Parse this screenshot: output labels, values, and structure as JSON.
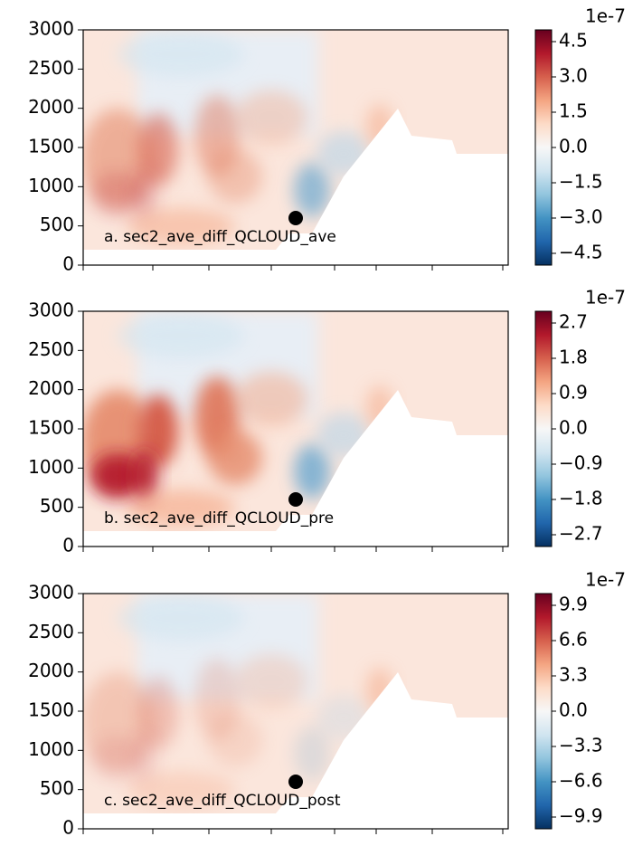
{
  "chart_data": [
    {
      "type": "contour",
      "title": "a. sec2_ave_diff_QCLOUD_ave",
      "ylim": [
        0,
        3000
      ],
      "yticks": [
        0,
        500,
        1000,
        1500,
        2000,
        2500,
        3000
      ],
      "marker": {
        "y": 600
      },
      "colorbar": {
        "offset_label": "1e-7",
        "lim": [
          -5.0,
          5.0
        ],
        "ticks": [
          {
            "value": -4.5,
            "label": "−4.5"
          },
          {
            "value": -3.0,
            "label": "−3.0"
          },
          {
            "value": -1.5,
            "label": "−1.5"
          },
          {
            "value": 0,
            "label": "0.0"
          },
          1.5,
          {
            "value": 3.0,
            "label": "3.0"
          },
          4.5
        ]
      }
    },
    {
      "type": "contour",
      "title": "b. sec2_ave_diff_QCLOUD_pre",
      "ylim": [
        0,
        3000
      ],
      "yticks": [
        0,
        500,
        1000,
        1500,
        2000,
        2500,
        3000
      ],
      "marker": {
        "y": 600
      },
      "colorbar": {
        "offset_label": "1e-7",
        "lim": [
          -3.0,
          3.0
        ],
        "ticks": [
          {
            "value": -2.7,
            "label": "−2.7"
          },
          {
            "value": -1.8,
            "label": "−1.8"
          },
          {
            "value": -0.9,
            "label": "−0.9"
          },
          {
            "value": 0,
            "label": "0.0"
          },
          0.9,
          1.8,
          2.7
        ]
      }
    },
    {
      "type": "contour",
      "title": "c. sec2_ave_diff_QCLOUD_post",
      "ylim": [
        0,
        3000
      ],
      "yticks": [
        0,
        500,
        1000,
        1500,
        2000,
        2500,
        3000
      ],
      "marker": {
        "y": 600
      },
      "colorbar": {
        "offset_label": "1e-7",
        "lim": [
          -11.0,
          11.0
        ],
        "ticks": [
          {
            "value": -9.9,
            "label": "−9.9"
          },
          {
            "value": -6.6,
            "label": "−6.6"
          },
          {
            "value": -3.3,
            "label": "−3.3"
          },
          {
            "value": 0,
            "label": "0.0"
          },
          3.3,
          6.6,
          9.9
        ]
      }
    }
  ]
}
